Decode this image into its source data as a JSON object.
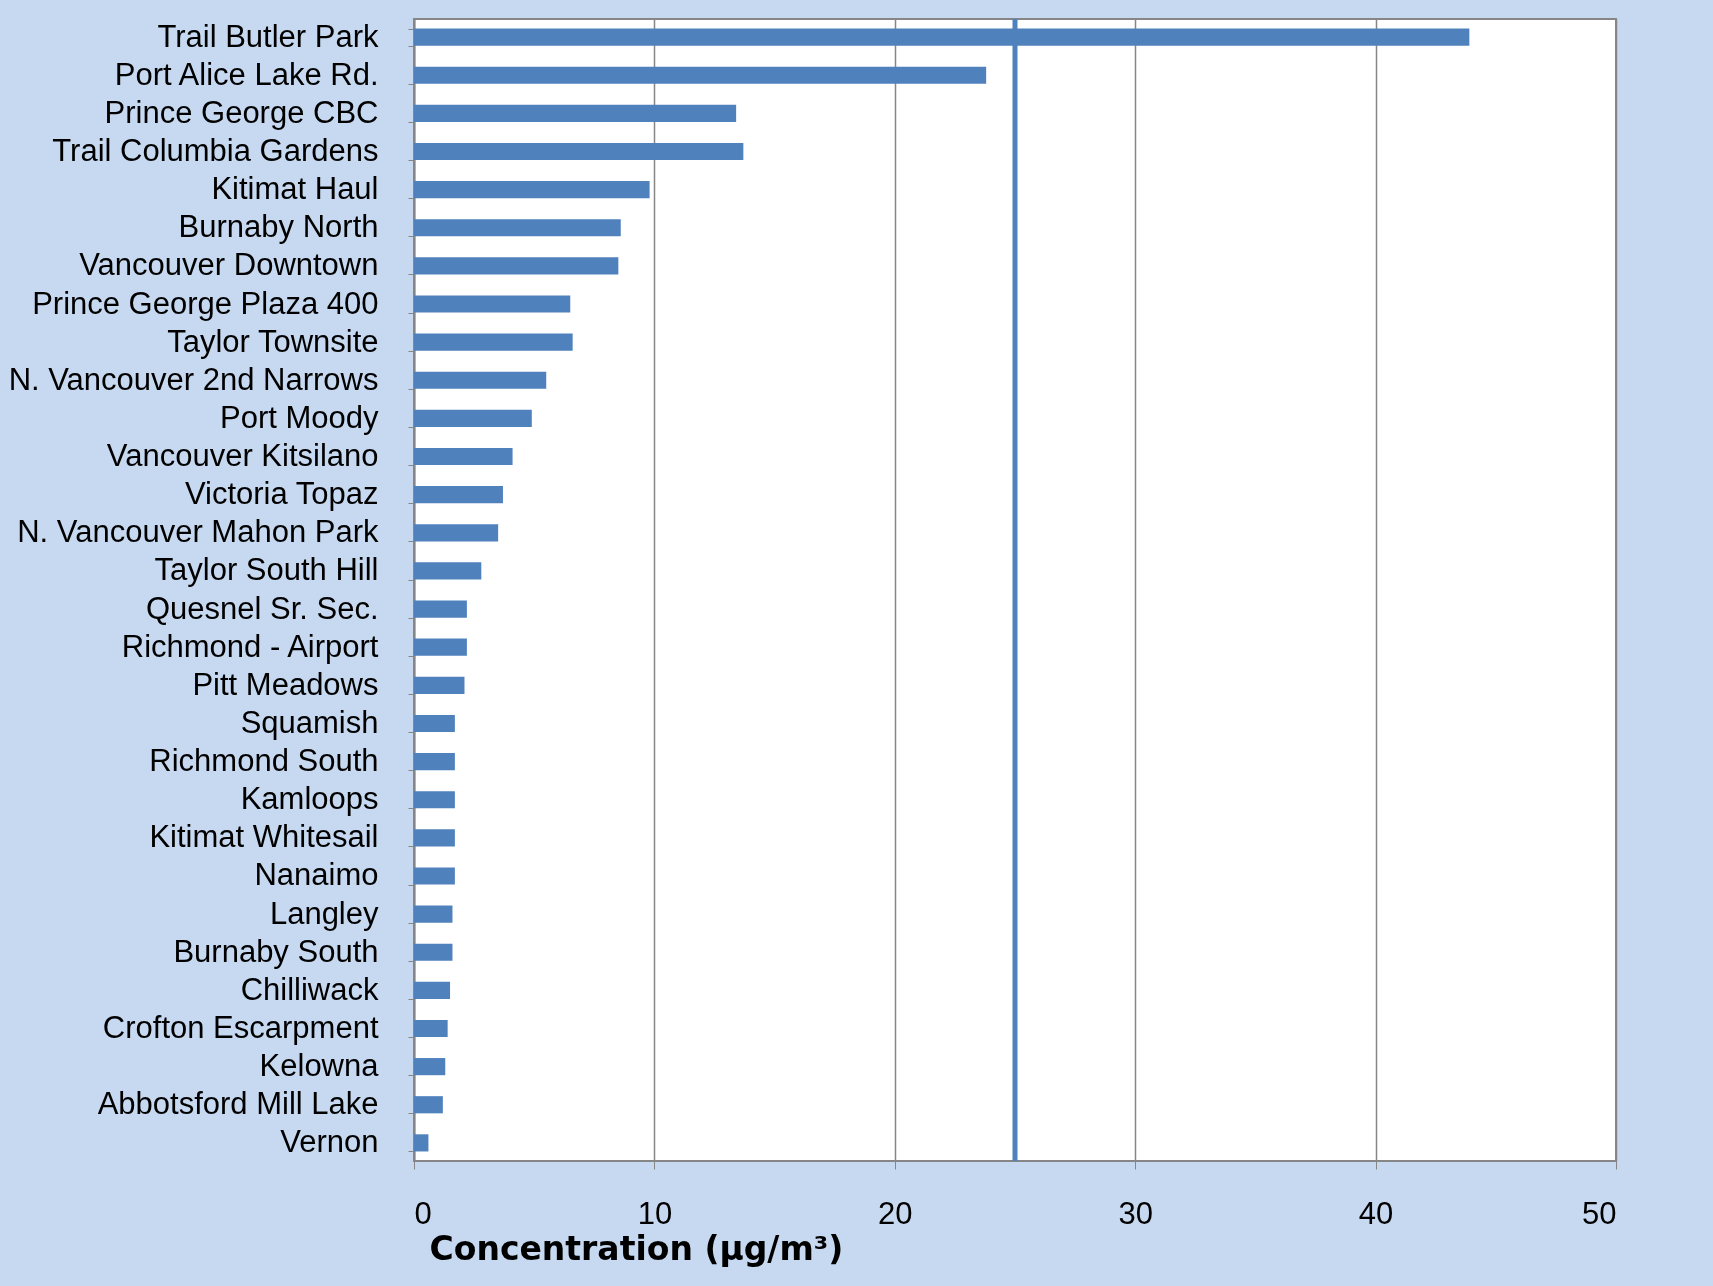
{
  "chart_data": {
    "type": "bar",
    "orientation": "horizontal",
    "xlabel": "Concentration (µg/m³)",
    "categories": [
      "Trail Butler Park",
      "Port Alice Lake Rd.",
      "Prince George CBC",
      "Trail Columbia Gardens",
      "Kitimat Haul",
      "Burnaby North",
      "Vancouver Downtown",
      "Prince George Plaza 400",
      "Taylor Townsite",
      "N. Vancouver 2nd Narrows",
      "Port Moody",
      "Vancouver Kitsilano",
      "Victoria Topaz",
      "N. Vancouver Mahon Park",
      "Taylor South Hill",
      "Quesnel Sr. Sec.",
      "Richmond - Airport",
      "Pitt Meadows",
      "Squamish",
      "Richmond South",
      "Kamloops",
      "Kitimat Whitesail",
      "Nanaimo",
      "Langley",
      "Burnaby South",
      "Chilliwack",
      "Crofton Escarpment",
      "Kelowna",
      "Abbotsford Mill Lake",
      "Vernon"
    ],
    "values": [
      43.9,
      23.8,
      13.4,
      13.7,
      9.8,
      8.6,
      8.5,
      6.5,
      6.6,
      5.5,
      4.9,
      4.1,
      3.7,
      3.5,
      2.8,
      2.2,
      2.2,
      2.1,
      1.7,
      1.7,
      1.7,
      1.7,
      1.7,
      1.6,
      1.6,
      1.5,
      1.4,
      1.3,
      1.2,
      0.6
    ],
    "color": "#4f81bd",
    "xlim": [
      0,
      50
    ],
    "xticks": [
      0,
      10,
      20,
      30,
      40,
      50
    ],
    "grid": "x",
    "ref_lines": [
      {
        "axis": "x",
        "value": 25,
        "color": "#4f81bd"
      }
    ]
  }
}
